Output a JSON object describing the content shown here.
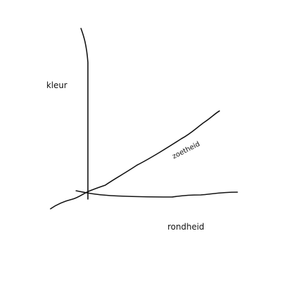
{
  "axes": {
    "vertical_label": "kleur",
    "horizontal_label": "rondheid",
    "diagonal_label": "zoetheid"
  },
  "colors": {
    "background": "#ffffff",
    "ink": "#111111"
  }
}
